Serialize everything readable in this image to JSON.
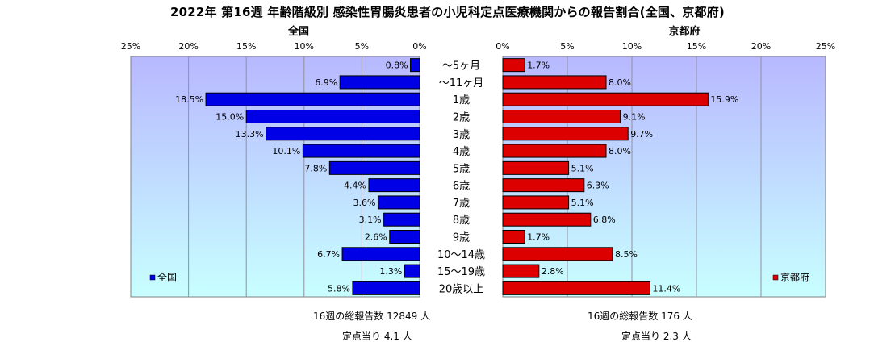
{
  "title": "2022年 第16週  年齢階級別 感染性胃腸炎患者の小児科定点医療機関からの報告割合(全国、京都府)",
  "chart_data": {
    "type": "bar",
    "orientation": "horizontal",
    "layout": "back-to-back",
    "categories": [
      "～5ヶ月",
      "～11ヶ月",
      "1歳",
      "2歳",
      "3歳",
      "4歳",
      "5歳",
      "6歳",
      "7歳",
      "8歳",
      "9歳",
      "10～14歳",
      "15～19歳",
      "20歳以上"
    ],
    "xlim": [
      0,
      25
    ],
    "tick_labels": [
      "0%",
      "5%",
      "10%",
      "15%",
      "20%",
      "25%"
    ],
    "unit": "%",
    "grid": true,
    "panels": [
      {
        "name": "全国",
        "heading": "全国",
        "legend": "全国",
        "legend_position": "bottom-left",
        "direction": "reversed",
        "color": "#0000e6",
        "values": [
          0.8,
          6.9,
          18.5,
          15.0,
          13.3,
          10.1,
          7.8,
          4.4,
          3.6,
          3.1,
          2.6,
          6.7,
          1.3,
          5.8
        ],
        "value_labels": [
          "0.8%",
          "6.9%",
          "18.5%",
          "15.0%",
          "13.3%",
          "10.1%",
          "7.8%",
          "4.4%",
          "3.6%",
          "3.1%",
          "2.6%",
          "6.7%",
          "1.3%",
          "5.8%"
        ]
      },
      {
        "name": "京都府",
        "heading": "京都府",
        "legend": "京都府",
        "legend_position": "bottom-right",
        "direction": "normal",
        "color": "#dd0000",
        "values": [
          1.7,
          8.0,
          15.9,
          9.1,
          9.7,
          8.0,
          5.1,
          6.3,
          5.1,
          6.8,
          1.7,
          8.5,
          2.8,
          11.4
        ],
        "value_labels": [
          "1.7%",
          "8.0%",
          "15.9%",
          "9.1%",
          "9.7%",
          "8.0%",
          "5.1%",
          "6.3%",
          "5.1%",
          "6.8%",
          "1.7%",
          "8.5%",
          "2.8%",
          "11.4%"
        ]
      }
    ]
  },
  "footer": {
    "national_total": "16週の総報告数 12849 人",
    "national_per_site": "定点当り    4.1 人",
    "kyoto_total": "16週の総報告数    176 人",
    "kyoto_per_site": "定点当り    2.3 人"
  },
  "colors": {
    "plot_top": "#b8b8ff",
    "plot_bottom": "#c8ffff",
    "grid": "#9090a0"
  }
}
